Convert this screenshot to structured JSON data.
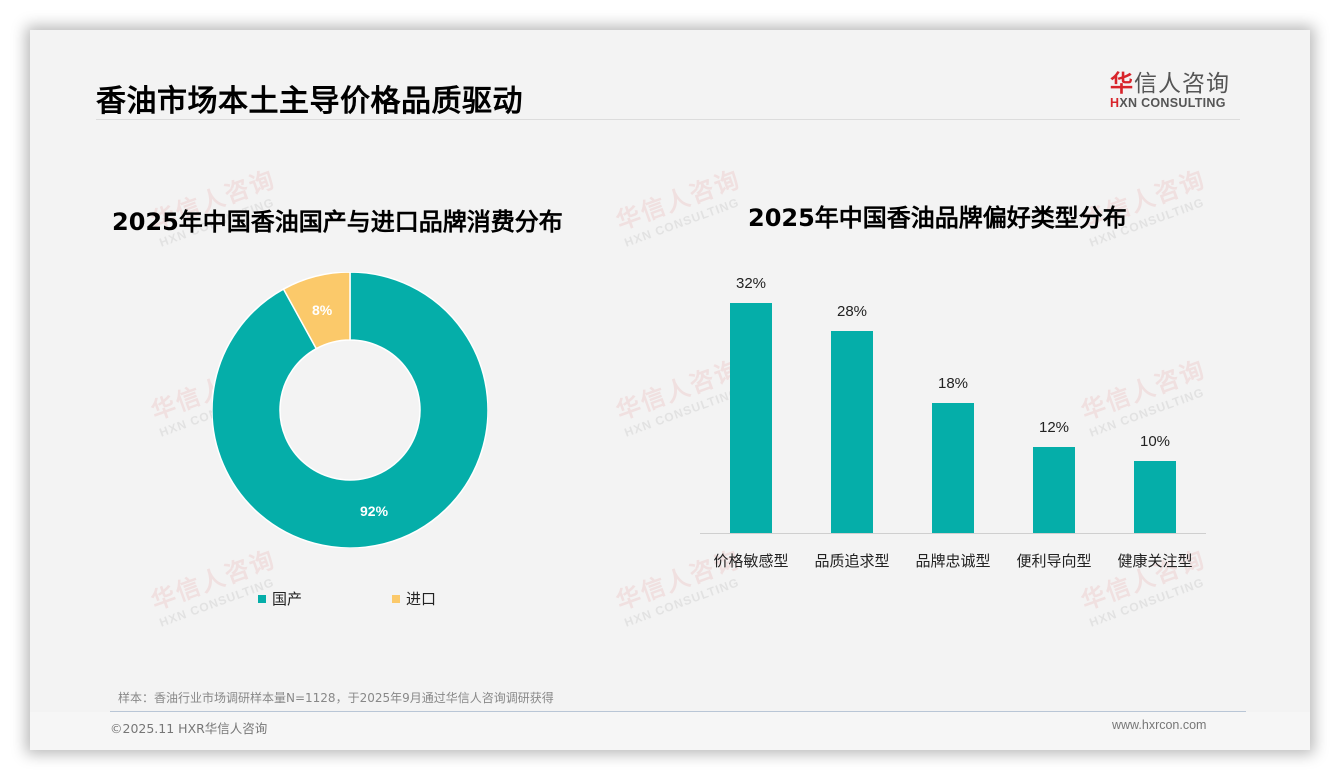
{
  "header": {
    "title": "香油市场本土主导价格品质驱动",
    "logo_cn_accent": "华",
    "logo_cn_rest": "信人咨询",
    "logo_en_accent": "H",
    "logo_en_rest": "XN CONSULTING"
  },
  "watermark": {
    "cn": "华信人咨询",
    "en": "HXN CONSULTING"
  },
  "colors": {
    "teal": "#05aea9",
    "yellow": "#fbc96a",
    "brand_red": "#d8242b"
  },
  "chart_data": [
    {
      "type": "pie",
      "subtype": "donut",
      "title": "2025年中国香油国产与进口品牌消费分布",
      "categories": [
        "国产",
        "进口"
      ],
      "values": [
        92,
        8
      ],
      "labels": [
        "92%",
        "8%"
      ],
      "colors": [
        "#05aea9",
        "#fbc96a"
      ],
      "legend_position": "bottom"
    },
    {
      "type": "bar",
      "title": "2025年中国香油品牌偏好类型分布",
      "categories": [
        "价格敏感型",
        "品质追求型",
        "品牌忠诚型",
        "便利导向型",
        "健康关注型"
      ],
      "values": [
        32,
        28,
        18,
        12,
        10
      ],
      "labels": [
        "32%",
        "28%",
        "18%",
        "12%",
        "10%"
      ],
      "xlabel": "",
      "ylabel": "",
      "unit": "%",
      "grid": false,
      "color": "#05aea9"
    }
  ],
  "footer": {
    "source": "样本：香油行业市场调研样本量N=1128，于2025年9月通过华信人咨询调研获得",
    "copyright": "©2025.11 HXR华信人咨询",
    "website": "www.hxrcon.com"
  }
}
